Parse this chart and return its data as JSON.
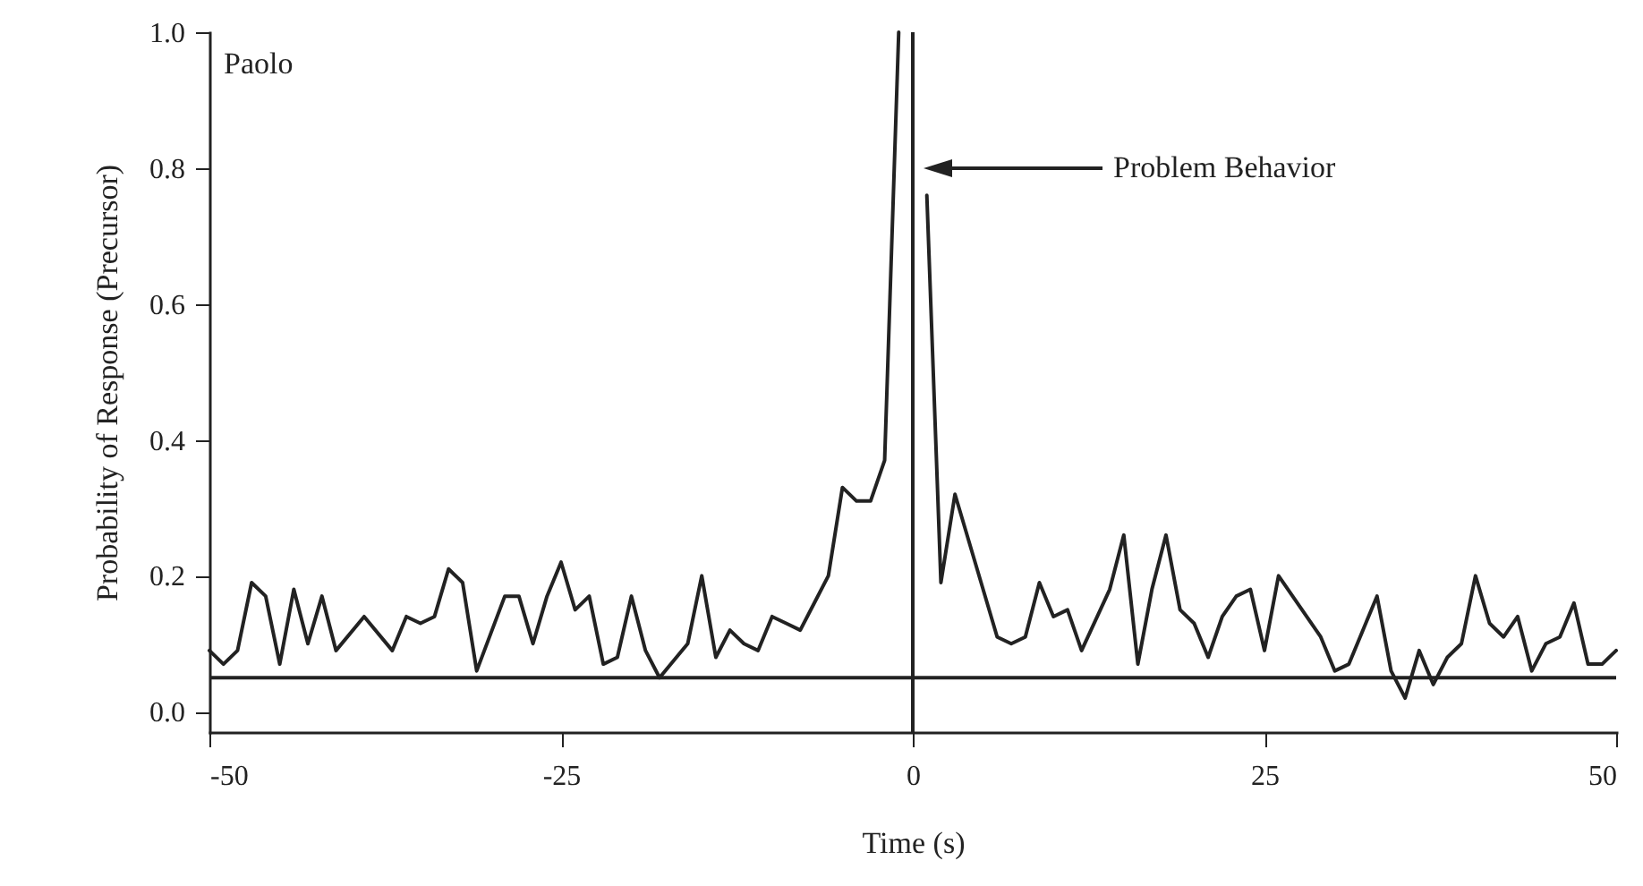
{
  "chart_data": {
    "type": "line",
    "xlabel": "Time (s)",
    "ylabel": "Probability of Response (Precursor)",
    "xlim": [
      -50,
      50
    ],
    "xticks": [
      -50,
      -25,
      0,
      25,
      50
    ],
    "ylim": [
      -0.03,
      1.0
    ],
    "yticks": [
      {
        "value": 0,
        "label": "0.0"
      },
      {
        "value": 0.2,
        "label": "0.2"
      },
      {
        "value": 0.4,
        "label": "0.4"
      },
      {
        "value": 0.6,
        "label": "0.6"
      },
      {
        "value": 0.8,
        "label": "0.8"
      },
      {
        "value": 1.0,
        "label": "1.0"
      }
    ],
    "grid": false,
    "series": [
      {
        "color": "#222222",
        "x": [
          -50,
          -49,
          -48,
          -47,
          -46,
          -45,
          -44,
          -43,
          -42,
          -41,
          -39,
          -37,
          -36,
          -35,
          -34,
          -33,
          -32,
          -31,
          -29,
          -28,
          -27,
          -26,
          -25,
          -24,
          -23,
          -22,
          -21,
          -20,
          -19,
          -18,
          -16,
          -15,
          -14,
          -13,
          -12,
          -11,
          -10,
          -9,
          -8,
          -7,
          -6,
          -5,
          -4,
          -3,
          -2,
          -1
        ],
        "values": [
          0.09,
          0.07,
          0.09,
          0.19,
          0.17,
          0.07,
          0.18,
          0.1,
          0.17,
          0.09,
          0.14,
          0.09,
          0.14,
          0.13,
          0.14,
          0.21,
          0.19,
          0.06,
          0.17,
          0.17,
          0.1,
          0.17,
          0.22,
          0.15,
          0.17,
          0.07,
          0.08,
          0.17,
          0.09,
          0.05,
          0.1,
          0.2,
          0.08,
          0.12,
          0.1,
          0.09,
          0.14,
          0.13,
          0.12,
          0.16,
          0.2,
          0.33,
          0.31,
          0.31,
          0.37,
          1.0
        ]
      },
      {
        "color": "#222222",
        "x": [
          1,
          2,
          3,
          6,
          7,
          8,
          9,
          10,
          11,
          12,
          14,
          15,
          16,
          17,
          18,
          19,
          20,
          21,
          22,
          23,
          24,
          25,
          26,
          28,
          29,
          30,
          31,
          33,
          34,
          35,
          36,
          37,
          38,
          39,
          40,
          41,
          42,
          43,
          44,
          45,
          46,
          47,
          48,
          49,
          50
        ],
        "values": [
          0.76,
          0.19,
          0.32,
          0.11,
          0.1,
          0.11,
          0.19,
          0.14,
          0.15,
          0.09,
          0.18,
          0.26,
          0.07,
          0.18,
          0.26,
          0.15,
          0.13,
          0.08,
          0.14,
          0.17,
          0.18,
          0.09,
          0.2,
          0.14,
          0.11,
          0.06,
          0.07,
          0.17,
          0.06,
          0.02,
          0.09,
          0.04,
          0.08,
          0.1,
          0.2,
          0.13,
          0.11,
          0.14,
          0.06,
          0.1,
          0.11,
          0.16,
          0.07,
          0.07,
          0.09
        ]
      }
    ],
    "ref_lines": [
      {
        "axis": "x",
        "value": 0,
        "color": "#222222"
      },
      {
        "axis": "y",
        "value": 0.05,
        "color": "#222222"
      }
    ],
    "annotations": [
      "Paolo",
      "Problem Behavior"
    ]
  }
}
